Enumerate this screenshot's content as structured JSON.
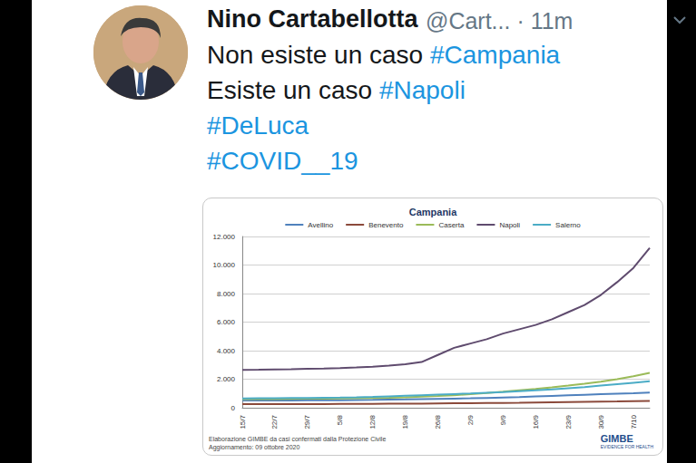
{
  "tweet": {
    "author": "Nino Cartabellotta",
    "meta": "@Cart... · 11m",
    "lines": [
      "Non esiste un caso #Campania",
      "Esiste un caso #Napoli",
      "#DeLuca",
      "#COVID__19"
    ]
  },
  "chart_data": {
    "type": "line",
    "title": "Campania",
    "footer": [
      "Elaborazione GIMBE da casi confermati dalla Protezione Civile",
      "Aggiornamento: 09 ottobre 2020"
    ],
    "logo": [
      "GIMBE",
      "EVIDENCE FOR HEALTH"
    ],
    "categories": [
      "15/7",
      null,
      "22/7",
      null,
      "29/7",
      null,
      "5/8",
      null,
      "12/8",
      null,
      "19/8",
      null,
      "26/8",
      null,
      "2/9",
      null,
      "9/9",
      null,
      "16/9",
      null,
      "23/9",
      null,
      "30/9",
      null,
      "7/10",
      null
    ],
    "series": [
      {
        "name": "Avellino",
        "color": "#4f81bd",
        "values": [
          500,
          505,
          510,
          515,
          520,
          525,
          530,
          540,
          550,
          565,
          580,
          600,
          620,
          640,
          660,
          690,
          720,
          750,
          790,
          830,
          870,
          910,
          950,
          990,
          1020,
          1060
        ]
      },
      {
        "name": "Benevento",
        "color": "#8b4a3b",
        "values": [
          250,
          250,
          255,
          255,
          260,
          260,
          265,
          270,
          275,
          280,
          285,
          290,
          300,
          310,
          320,
          330,
          340,
          350,
          365,
          380,
          395,
          410,
          425,
          440,
          460,
          480
        ]
      },
      {
        "name": "Caserta",
        "color": "#9bbb59",
        "values": [
          600,
          600,
          610,
          620,
          630,
          640,
          650,
          660,
          680,
          700,
          730,
          770,
          820,
          880,
          950,
          1030,
          1120,
          1220,
          1320,
          1430,
          1550,
          1680,
          1830,
          2000,
          2200,
          2450
        ]
      },
      {
        "name": "Napoli",
        "color": "#5f4b6e",
        "values": [
          2650,
          2660,
          2680,
          2700,
          2730,
          2750,
          2780,
          2820,
          2880,
          2950,
          3050,
          3200,
          3700,
          4200,
          4500,
          4800,
          5200,
          5500,
          5800,
          6200,
          6700,
          7200,
          7900,
          8800,
          9800,
          11200
        ]
      },
      {
        "name": "Salerno",
        "color": "#4bacc6",
        "values": [
          650,
          660,
          670,
          680,
          690,
          700,
          710,
          730,
          760,
          800,
          840,
          880,
          920,
          960,
          1000,
          1050,
          1100,
          1160,
          1220,
          1290,
          1370,
          1450,
          1550,
          1650,
          1750,
          1850
        ]
      }
    ],
    "ylim": [
      0,
      12000
    ],
    "yticks": [
      0,
      {
        "value": 2000,
        "label": "2.000"
      },
      {
        "value": 4000,
        "label": "4.000"
      },
      {
        "value": 6000,
        "label": "6.000"
      },
      {
        "value": 8000,
        "label": "8.000"
      },
      {
        "value": 10000,
        "label": "10.000"
      },
      {
        "value": 12000,
        "label": "12.000"
      }
    ],
    "grid": true,
    "legend": "top"
  }
}
